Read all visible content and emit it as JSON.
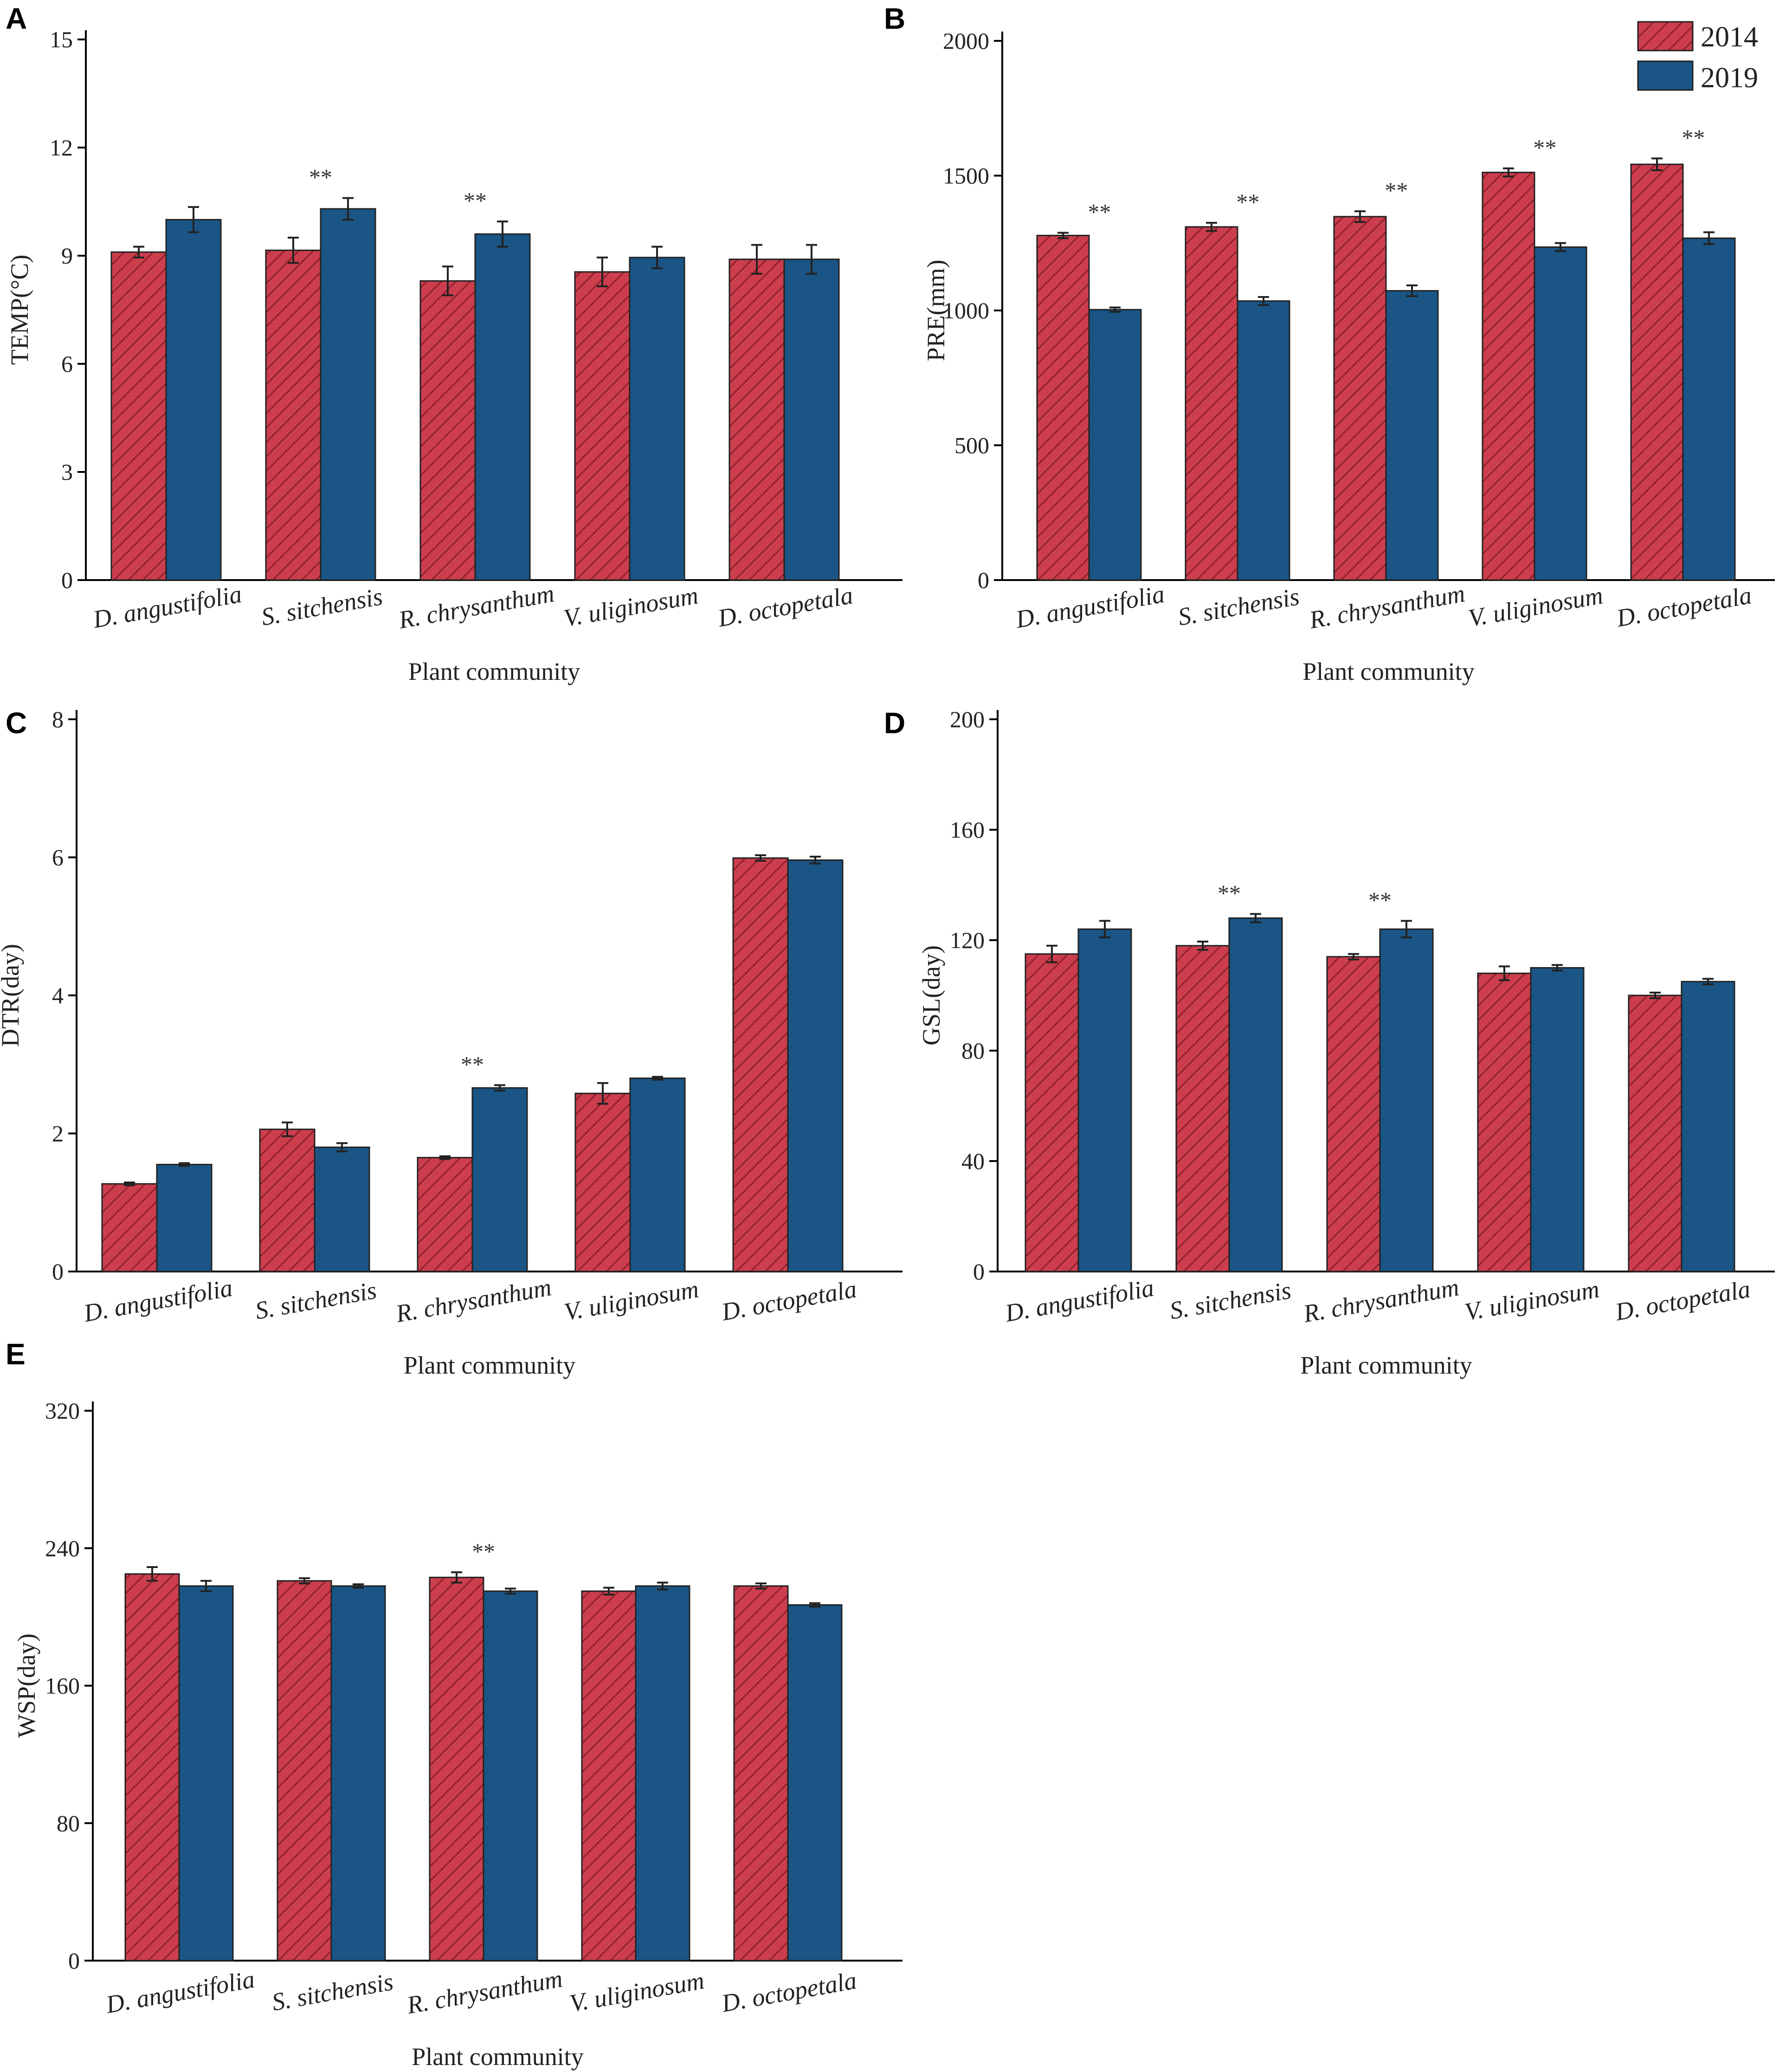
{
  "legend": {
    "series_2014": "2014",
    "series_2019": "2019"
  },
  "colors": {
    "series_2014": "#cc3e4e",
    "series_2014_hatch": "#8f1f2c",
    "series_2019": "#1a5585"
  },
  "chart_data": [
    {
      "id": "A",
      "type": "bar",
      "panel_label": "A",
      "ylabel": "TEMP(°C)",
      "xlabel": "Plant community",
      "ylim": [
        0,
        15
      ],
      "yticks": [
        0,
        3,
        6,
        9,
        12,
        15
      ],
      "categories": [
        "D. angustifolia",
        "S. sitchensis",
        "R. chrysanthum",
        "V. uliginosum",
        "D. octopetala"
      ],
      "series": [
        {
          "name": "2014",
          "values": [
            9.1,
            9.15,
            8.3,
            8.55,
            8.9
          ],
          "errors": [
            0.15,
            0.35,
            0.4,
            0.4,
            0.4
          ]
        },
        {
          "name": "2019",
          "values": [
            10.0,
            10.3,
            9.6,
            8.95,
            8.9
          ],
          "errors": [
            0.35,
            0.3,
            0.35,
            0.3,
            0.4
          ]
        }
      ],
      "significance": [
        "",
        "**",
        "**",
        "",
        ""
      ]
    },
    {
      "id": "B",
      "type": "bar",
      "panel_label": "B",
      "ylabel": "PRE(mm)",
      "xlabel": "Plant community",
      "ylim": [
        0,
        2000
      ],
      "yticks": [
        0,
        500,
        1000,
        1500,
        2000
      ],
      "legend_position": "top-right",
      "categories": [
        "D. angustifolia",
        "S. sitchensis",
        "R. chrysanthum",
        "V. uliginosum",
        "D. octopetala"
      ],
      "series": [
        {
          "name": "2014",
          "values": [
            1278,
            1310,
            1348,
            1512,
            1542
          ],
          "errors": [
            10,
            15,
            20,
            15,
            22
          ]
        },
        {
          "name": "2019",
          "values": [
            1003,
            1035,
            1073,
            1235,
            1268
          ],
          "errors": [
            8,
            15,
            20,
            15,
            22
          ]
        }
      ],
      "significance": [
        "**",
        "**",
        "**",
        "**",
        "**"
      ]
    },
    {
      "id": "C",
      "type": "bar",
      "panel_label": "C",
      "ylabel": "DTR(day)",
      "xlabel": "Plant community",
      "ylim": [
        0,
        8
      ],
      "yticks": [
        0,
        2,
        4,
        6,
        8
      ],
      "categories": [
        "D. angustifolia",
        "S. sitchensis",
        "R. chrysanthum",
        "V. uliginosum",
        "D. octopetala"
      ],
      "series": [
        {
          "name": "2014",
          "values": [
            1.27,
            2.06,
            1.65,
            2.58,
            5.99
          ],
          "errors": [
            0.02,
            0.1,
            0.02,
            0.15,
            0.04
          ]
        },
        {
          "name": "2019",
          "values": [
            1.55,
            1.8,
            2.66,
            2.8,
            5.96
          ],
          "errors": [
            0.02,
            0.06,
            0.04,
            0.02,
            0.05
          ]
        }
      ],
      "significance": [
        "",
        "",
        "**",
        "",
        ""
      ]
    },
    {
      "id": "D",
      "type": "bar",
      "panel_label": "D",
      "ylabel": "GSL(day)",
      "xlabel": "Plant community",
      "ylim": [
        0,
        200
      ],
      "yticks": [
        0,
        40,
        80,
        120,
        160,
        200
      ],
      "categories": [
        "D. angustifolia",
        "S. sitchensis",
        "R. chrysanthum",
        "V. uliginosum",
        "D. octopetala"
      ],
      "series": [
        {
          "name": "2014",
          "values": [
            115,
            118,
            114,
            108,
            100
          ],
          "errors": [
            3,
            1.5,
            1,
            2.5,
            1
          ]
        },
        {
          "name": "2019",
          "values": [
            124,
            128,
            124,
            110,
            105
          ],
          "errors": [
            3,
            1.5,
            3,
            1,
            1
          ]
        }
      ],
      "significance": [
        "",
        "**",
        "**",
        "",
        ""
      ]
    },
    {
      "id": "E",
      "type": "bar",
      "panel_label": "E",
      "ylabel": "WSP(day)",
      "xlabel": "Plant community",
      "ylim": [
        0,
        320
      ],
      "yticks": [
        0,
        80,
        160,
        240,
        320
      ],
      "categories": [
        "D. angustifolia",
        "S. sitchensis",
        "R. chrysanthum",
        "V. uliginosum",
        "D. octopetala"
      ],
      "series": [
        {
          "name": "2014",
          "values": [
            225,
            221,
            223,
            215,
            218
          ],
          "errors": [
            4,
            1.5,
            3,
            2,
            1.5
          ]
        },
        {
          "name": "2019",
          "values": [
            218,
            218,
            215,
            218,
            207
          ],
          "errors": [
            3,
            1,
            1.5,
            2,
            1
          ]
        }
      ],
      "significance": [
        "",
        "",
        "**",
        "",
        ""
      ]
    }
  ]
}
